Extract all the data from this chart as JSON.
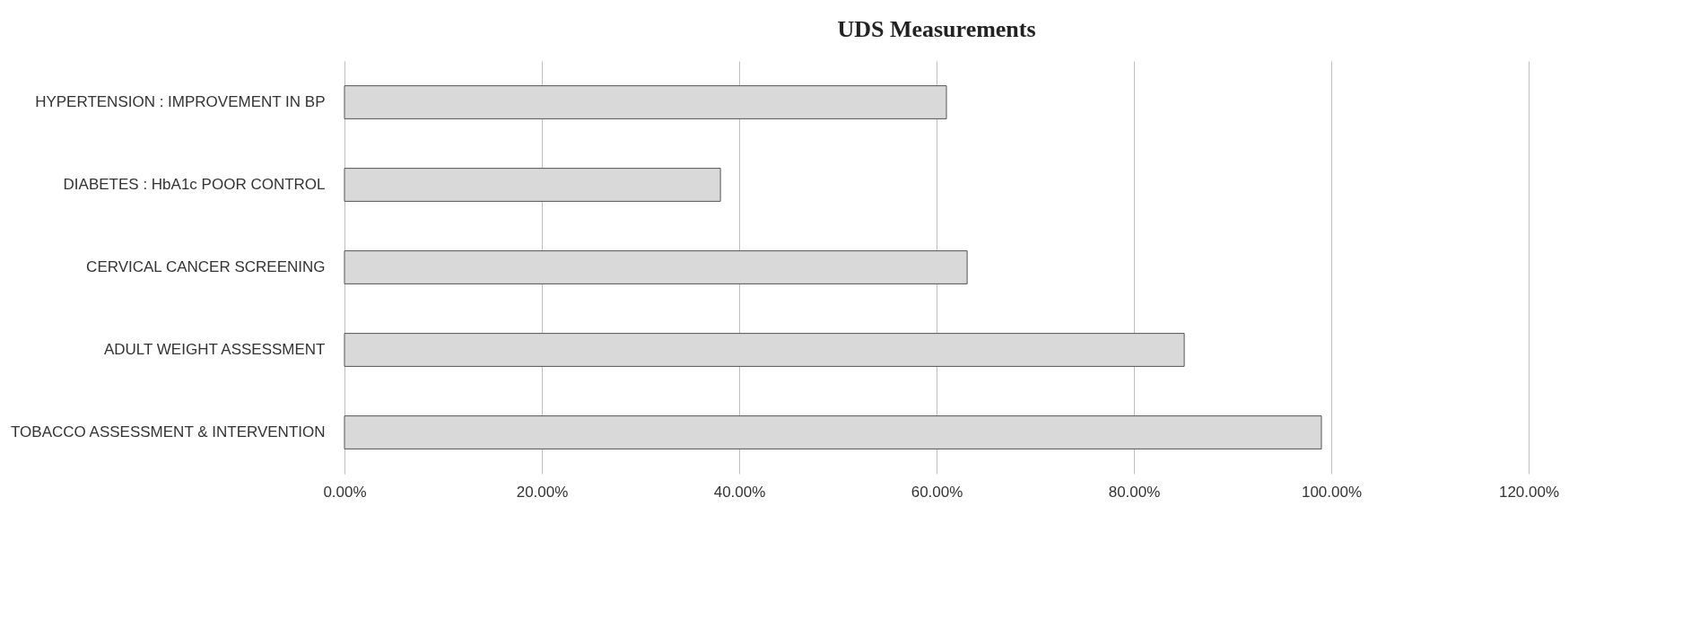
{
  "chart_data": {
    "type": "bar",
    "orientation": "horizontal",
    "title": "UDS Measurements",
    "categories": [
      "HYPERTENSION : IMPROVEMENT IN BP",
      "DIABETES : HbA1c POOR CONTROL",
      "CERVICAL CANCER SCREENING",
      "ADULT WEIGHT ASSESSMENT",
      "TOBACCO ASSESSMENT & INTERVENTION"
    ],
    "values": [
      61.0,
      38.1,
      63.1,
      85.1,
      99.0
    ],
    "color": "#d9d9d9",
    "xlim": [
      0,
      120
    ],
    "xticks": [
      {
        "value": 0,
        "label": "0.00%"
      },
      {
        "value": 20,
        "label": "20.00%"
      },
      {
        "value": 40,
        "label": "40.00%"
      },
      {
        "value": 60,
        "label": "60.00%"
      },
      {
        "value": 80,
        "label": "80.00%"
      },
      {
        "value": 100,
        "label": "100.00%"
      },
      {
        "value": 120,
        "label": "120.00%"
      }
    ],
    "grid": "x"
  }
}
